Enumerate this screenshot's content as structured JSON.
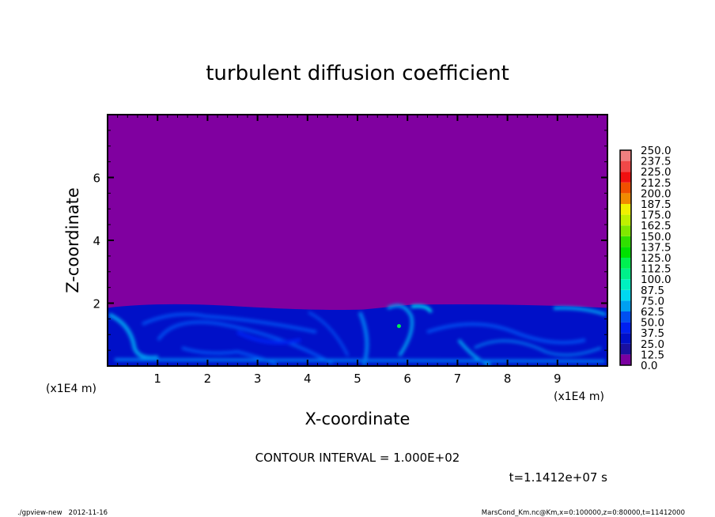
{
  "chart_data": {
    "type": "heatmap",
    "title": "turbulent diffusion coefficient",
    "xlabel": "X-coordinate",
    "ylabel": "Z-coordinate",
    "x_unit": "(x1E4 m)",
    "y_unit": "(x1E4 m)",
    "xlim": [
      0,
      10
    ],
    "ylim": [
      0,
      8
    ],
    "x_ticks": [
      "1",
      "2",
      "3",
      "4",
      "5",
      "6",
      "7",
      "8",
      "9"
    ],
    "y_ticks": [
      "2",
      "4",
      "6"
    ],
    "background_value": 0.0,
    "turbulent_layer_top": 1.9,
    "colorbar": {
      "levels": [
        "0.0",
        "12.5",
        "25.0",
        "37.5",
        "50.0",
        "62.5",
        "75.0",
        "87.5",
        "100.0",
        "112.5",
        "125.0",
        "137.5",
        "150.0",
        "162.5",
        "175.0",
        "187.5",
        "200.0",
        "212.5",
        "225.0",
        "237.5",
        "250.0"
      ],
      "colors": [
        "#7a00a0",
        "#1a10a0",
        "#0010c8",
        "#0020f0",
        "#0050f0",
        "#0078f0",
        "#00a0f0",
        "#00d8f0",
        "#00f0c0",
        "#00f08a",
        "#00f050",
        "#00e000",
        "#30e000",
        "#80e800",
        "#c0f000",
        "#f0f000",
        "#f0c000",
        "#f08a00",
        "#f05000",
        "#f01010",
        "#f04848",
        "#f08080"
      ]
    },
    "contour_interval": "CONTOUR INTERVAL = 1.000E+02",
    "time_label": "t=1.1412e+07 s"
  },
  "footer": {
    "left": "./gpview-new   2012-11-16",
    "right": "MarsCond_Km.nc@Km,x=0:100000,z=0:80000,t=11412000"
  },
  "colors": {
    "background": "#8000a0",
    "frame": "#000000"
  }
}
